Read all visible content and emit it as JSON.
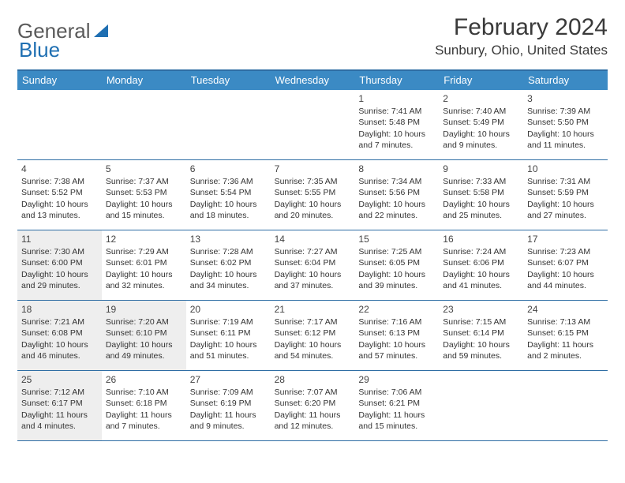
{
  "logo": {
    "text_gray": "General",
    "text_blue": "Blue"
  },
  "title": {
    "month": "February 2024",
    "location": "Sunbury, Ohio, United States"
  },
  "colors": {
    "header_bar": "#3b8ac4",
    "rule": "#2e6da4",
    "shaded_cell": "#eeeeee",
    "logo_gray": "#5a5a5a",
    "logo_blue": "#1f6fb2"
  },
  "day_names": [
    "Sunday",
    "Monday",
    "Tuesday",
    "Wednesday",
    "Thursday",
    "Friday",
    "Saturday"
  ],
  "weeks": [
    [
      {
        "blank": true,
        "shaded": false
      },
      {
        "blank": true,
        "shaded": false
      },
      {
        "blank": true,
        "shaded": false
      },
      {
        "blank": true,
        "shaded": false
      },
      {
        "day": "1",
        "shaded": false,
        "sunrise": "Sunrise: 7:41 AM",
        "sunset": "Sunset: 5:48 PM",
        "daylight1": "Daylight: 10 hours",
        "daylight2": "and 7 minutes."
      },
      {
        "day": "2",
        "shaded": false,
        "sunrise": "Sunrise: 7:40 AM",
        "sunset": "Sunset: 5:49 PM",
        "daylight1": "Daylight: 10 hours",
        "daylight2": "and 9 minutes."
      },
      {
        "day": "3",
        "shaded": false,
        "sunrise": "Sunrise: 7:39 AM",
        "sunset": "Sunset: 5:50 PM",
        "daylight1": "Daylight: 10 hours",
        "daylight2": "and 11 minutes."
      }
    ],
    [
      {
        "day": "4",
        "shaded": false,
        "sunrise": "Sunrise: 7:38 AM",
        "sunset": "Sunset: 5:52 PM",
        "daylight1": "Daylight: 10 hours",
        "daylight2": "and 13 minutes."
      },
      {
        "day": "5",
        "shaded": false,
        "sunrise": "Sunrise: 7:37 AM",
        "sunset": "Sunset: 5:53 PM",
        "daylight1": "Daylight: 10 hours",
        "daylight2": "and 15 minutes."
      },
      {
        "day": "6",
        "shaded": false,
        "sunrise": "Sunrise: 7:36 AM",
        "sunset": "Sunset: 5:54 PM",
        "daylight1": "Daylight: 10 hours",
        "daylight2": "and 18 minutes."
      },
      {
        "day": "7",
        "shaded": false,
        "sunrise": "Sunrise: 7:35 AM",
        "sunset": "Sunset: 5:55 PM",
        "daylight1": "Daylight: 10 hours",
        "daylight2": "and 20 minutes."
      },
      {
        "day": "8",
        "shaded": false,
        "sunrise": "Sunrise: 7:34 AM",
        "sunset": "Sunset: 5:56 PM",
        "daylight1": "Daylight: 10 hours",
        "daylight2": "and 22 minutes."
      },
      {
        "day": "9",
        "shaded": false,
        "sunrise": "Sunrise: 7:33 AM",
        "sunset": "Sunset: 5:58 PM",
        "daylight1": "Daylight: 10 hours",
        "daylight2": "and 25 minutes."
      },
      {
        "day": "10",
        "shaded": false,
        "sunrise": "Sunrise: 7:31 AM",
        "sunset": "Sunset: 5:59 PM",
        "daylight1": "Daylight: 10 hours",
        "daylight2": "and 27 minutes."
      }
    ],
    [
      {
        "day": "11",
        "shaded": true,
        "sunrise": "Sunrise: 7:30 AM",
        "sunset": "Sunset: 6:00 PM",
        "daylight1": "Daylight: 10 hours",
        "daylight2": "and 29 minutes."
      },
      {
        "day": "12",
        "shaded": false,
        "sunrise": "Sunrise: 7:29 AM",
        "sunset": "Sunset: 6:01 PM",
        "daylight1": "Daylight: 10 hours",
        "daylight2": "and 32 minutes."
      },
      {
        "day": "13",
        "shaded": false,
        "sunrise": "Sunrise: 7:28 AM",
        "sunset": "Sunset: 6:02 PM",
        "daylight1": "Daylight: 10 hours",
        "daylight2": "and 34 minutes."
      },
      {
        "day": "14",
        "shaded": false,
        "sunrise": "Sunrise: 7:27 AM",
        "sunset": "Sunset: 6:04 PM",
        "daylight1": "Daylight: 10 hours",
        "daylight2": "and 37 minutes."
      },
      {
        "day": "15",
        "shaded": false,
        "sunrise": "Sunrise: 7:25 AM",
        "sunset": "Sunset: 6:05 PM",
        "daylight1": "Daylight: 10 hours",
        "daylight2": "and 39 minutes."
      },
      {
        "day": "16",
        "shaded": false,
        "sunrise": "Sunrise: 7:24 AM",
        "sunset": "Sunset: 6:06 PM",
        "daylight1": "Daylight: 10 hours",
        "daylight2": "and 41 minutes."
      },
      {
        "day": "17",
        "shaded": false,
        "sunrise": "Sunrise: 7:23 AM",
        "sunset": "Sunset: 6:07 PM",
        "daylight1": "Daylight: 10 hours",
        "daylight2": "and 44 minutes."
      }
    ],
    [
      {
        "day": "18",
        "shaded": true,
        "sunrise": "Sunrise: 7:21 AM",
        "sunset": "Sunset: 6:08 PM",
        "daylight1": "Daylight: 10 hours",
        "daylight2": "and 46 minutes."
      },
      {
        "day": "19",
        "shaded": true,
        "sunrise": "Sunrise: 7:20 AM",
        "sunset": "Sunset: 6:10 PM",
        "daylight1": "Daylight: 10 hours",
        "daylight2": "and 49 minutes."
      },
      {
        "day": "20",
        "shaded": false,
        "sunrise": "Sunrise: 7:19 AM",
        "sunset": "Sunset: 6:11 PM",
        "daylight1": "Daylight: 10 hours",
        "daylight2": "and 51 minutes."
      },
      {
        "day": "21",
        "shaded": false,
        "sunrise": "Sunrise: 7:17 AM",
        "sunset": "Sunset: 6:12 PM",
        "daylight1": "Daylight: 10 hours",
        "daylight2": "and 54 minutes."
      },
      {
        "day": "22",
        "shaded": false,
        "sunrise": "Sunrise: 7:16 AM",
        "sunset": "Sunset: 6:13 PM",
        "daylight1": "Daylight: 10 hours",
        "daylight2": "and 57 minutes."
      },
      {
        "day": "23",
        "shaded": false,
        "sunrise": "Sunrise: 7:15 AM",
        "sunset": "Sunset: 6:14 PM",
        "daylight1": "Daylight: 10 hours",
        "daylight2": "and 59 minutes."
      },
      {
        "day": "24",
        "shaded": false,
        "sunrise": "Sunrise: 7:13 AM",
        "sunset": "Sunset: 6:15 PM",
        "daylight1": "Daylight: 11 hours",
        "daylight2": "and 2 minutes."
      }
    ],
    [
      {
        "day": "25",
        "shaded": true,
        "sunrise": "Sunrise: 7:12 AM",
        "sunset": "Sunset: 6:17 PM",
        "daylight1": "Daylight: 11 hours",
        "daylight2": "and 4 minutes."
      },
      {
        "day": "26",
        "shaded": false,
        "sunrise": "Sunrise: 7:10 AM",
        "sunset": "Sunset: 6:18 PM",
        "daylight1": "Daylight: 11 hours",
        "daylight2": "and 7 minutes."
      },
      {
        "day": "27",
        "shaded": false,
        "sunrise": "Sunrise: 7:09 AM",
        "sunset": "Sunset: 6:19 PM",
        "daylight1": "Daylight: 11 hours",
        "daylight2": "and 9 minutes."
      },
      {
        "day": "28",
        "shaded": false,
        "sunrise": "Sunrise: 7:07 AM",
        "sunset": "Sunset: 6:20 PM",
        "daylight1": "Daylight: 11 hours",
        "daylight2": "and 12 minutes."
      },
      {
        "day": "29",
        "shaded": false,
        "sunrise": "Sunrise: 7:06 AM",
        "sunset": "Sunset: 6:21 PM",
        "daylight1": "Daylight: 11 hours",
        "daylight2": "and 15 minutes."
      },
      {
        "blank": true,
        "shaded": false
      },
      {
        "blank": true,
        "shaded": false
      }
    ]
  ]
}
